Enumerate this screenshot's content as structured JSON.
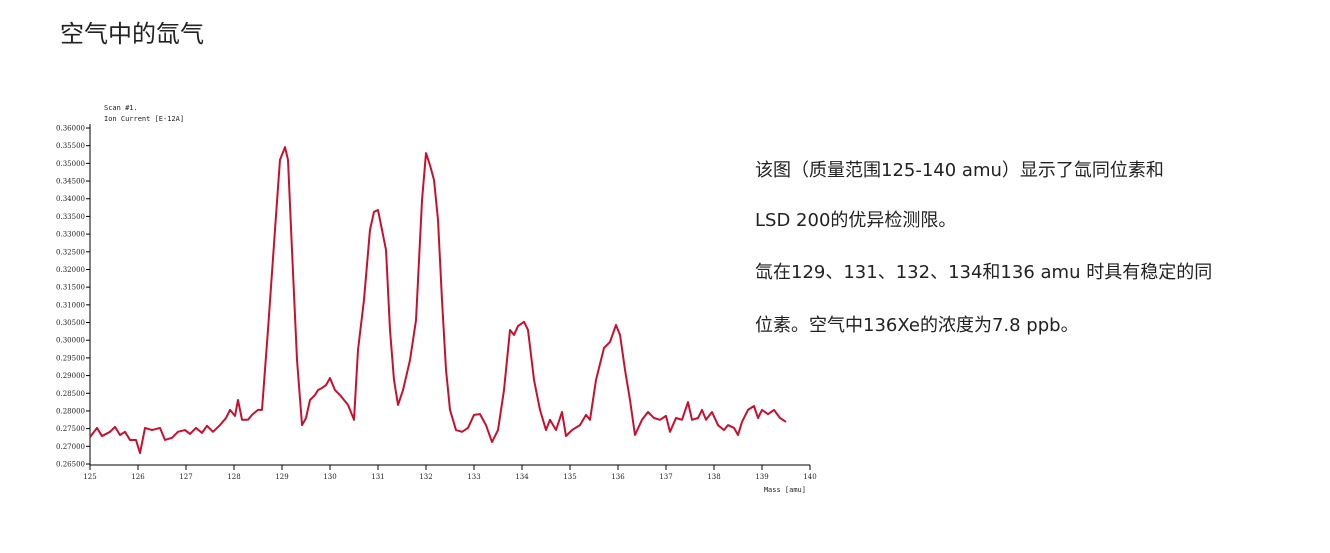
{
  "heading": "空气中的氙气",
  "description": [
    "该图（质量范围125-140 amu）显示了氙同位素和",
    "LSD 200的优异检测限。",
    "氙在129、131、132、134和136 amu 时具有稳定的同",
    "位素。空气中136Xe的浓度为7.8 ppb。"
  ],
  "chart_data": {
    "type": "line",
    "subtitle": "Scan #1.",
    "y_label": "Ion Current [E-12A]",
    "x_label": "Mass [amu]",
    "xlim": [
      125,
      140
    ],
    "xticks": [
      125,
      126,
      127,
      128,
      129,
      130,
      131,
      132,
      133,
      134,
      135,
      136,
      137,
      138,
      139,
      140
    ],
    "ylim": [
      0.265,
      0.36
    ],
    "yticks": [
      {
        "value": 0.265,
        "label": "0.26500"
      },
      {
        "value": 0.27,
        "label": "0.27000"
      },
      {
        "value": 0.275,
        "label": "0.27500"
      },
      {
        "value": 0.28,
        "label": "0.28000"
      },
      {
        "value": 0.285,
        "label": "0.28500"
      },
      {
        "value": 0.29,
        "label": "0.29000"
      },
      {
        "value": 0.295,
        "label": "0.29500"
      },
      {
        "value": 0.3,
        "label": "0.30000"
      },
      {
        "value": 0.305,
        "label": "0.30500"
      },
      {
        "value": 0.31,
        "label": "0.31000"
      },
      {
        "value": 0.315,
        "label": "0.31500"
      },
      {
        "value": 0.32,
        "label": "0.32000"
      },
      {
        "value": 0.325,
        "label": "0.32500"
      },
      {
        "value": 0.33,
        "label": "0.33000"
      },
      {
        "value": 0.335,
        "label": "0.33500"
      },
      {
        "value": 0.34,
        "label": "0.34000"
      },
      {
        "value": 0.345,
        "label": "0.34500"
      },
      {
        "value": 0.35,
        "label": "0.35000"
      },
      {
        "value": 0.355,
        "label": "0.35500"
      },
      {
        "value": 0.36,
        "label": "0.36000"
      }
    ],
    "grid": false,
    "series": [
      {
        "color": "#c8102e",
        "x": [
          125,
          125.146,
          125.25,
          125.417,
          125.521,
          125.625,
          125.729,
          125.833,
          125.958,
          126.042,
          126.146,
          126.292,
          126.458,
          126.563,
          126.708,
          126.833,
          126.979,
          127.083,
          127.208,
          127.333,
          127.438,
          127.563,
          127.708,
          127.833,
          127.917,
          128.021,
          128.083,
          128.167,
          128.292,
          128.375,
          128.5,
          128.583,
          128.708,
          128.854,
          128.958,
          129.063,
          129.125,
          129.208,
          129.313,
          129.417,
          129.5,
          129.583,
          129.688,
          129.75,
          129.833,
          129.917,
          130,
          130.104,
          130.208,
          130.375,
          130.5,
          130.583,
          130.708,
          130.833,
          130.917,
          131,
          131.083,
          131.167,
          131.25,
          131.333,
          131.417,
          131.521,
          131.667,
          131.792,
          131.917,
          132,
          132.083,
          132.167,
          132.25,
          132.333,
          132.417,
          132.5,
          132.625,
          132.75,
          132.875,
          133,
          133.125,
          133.25,
          133.375,
          133.5,
          133.625,
          133.75,
          133.833,
          133.917,
          134.042,
          134.125,
          134.25,
          134.375,
          134.5,
          134.583,
          134.708,
          134.833,
          134.917,
          135.042,
          135.208,
          135.333,
          135.417,
          135.542,
          135.708,
          135.833,
          135.958,
          136.042,
          136.146,
          136.25,
          136.354,
          136.5,
          136.625,
          136.75,
          136.875,
          137,
          137.083,
          137.208,
          137.333,
          137.458,
          137.542,
          137.667,
          137.75,
          137.833,
          137.958,
          138.083,
          138.208,
          138.292,
          138.417,
          138.5,
          138.583,
          138.708,
          138.833,
          138.917,
          139,
          139.125,
          139.25,
          139.375,
          139.5
        ],
        "values": [
          0.2726,
          0.2752,
          0.2729,
          0.2741,
          0.2755,
          0.2732,
          0.2741,
          0.2718,
          0.2718,
          0.2681,
          0.2752,
          0.2746,
          0.2752,
          0.2718,
          0.2724,
          0.2741,
          0.2746,
          0.2735,
          0.2752,
          0.2738,
          0.2758,
          0.2741,
          0.276,
          0.278,
          0.2803,
          0.2786,
          0.2831,
          0.2775,
          0.2775,
          0.2789,
          0.2803,
          0.2803,
          0.3029,
          0.3312,
          0.351,
          0.3546,
          0.351,
          0.3255,
          0.2944,
          0.276,
          0.278,
          0.2831,
          0.2845,
          0.2859,
          0.2865,
          0.2873,
          0.2893,
          0.2859,
          0.2845,
          0.2817,
          0.2775,
          0.2972,
          0.3114,
          0.3312,
          0.3363,
          0.3368,
          0.3312,
          0.3255,
          0.3029,
          0.2888,
          0.2817,
          0.2859,
          0.2944,
          0.3057,
          0.3396,
          0.3529,
          0.3495,
          0.3453,
          0.334,
          0.3114,
          0.2916,
          0.2803,
          0.2746,
          0.2741,
          0.2752,
          0.2789,
          0.2791,
          0.276,
          0.2712,
          0.2746,
          0.2859,
          0.3029,
          0.3015,
          0.304,
          0.3052,
          0.3029,
          0.2888,
          0.2803,
          0.2746,
          0.2775,
          0.2746,
          0.2797,
          0.2729,
          0.2746,
          0.276,
          0.2789,
          0.2775,
          0.2888,
          0.2978,
          0.2995,
          0.3043,
          0.3015,
          0.2916,
          0.2831,
          0.2732,
          0.2775,
          0.2797,
          0.278,
          0.2775,
          0.2786,
          0.2741,
          0.278,
          0.2775,
          0.2825,
          0.2775,
          0.278,
          0.2803,
          0.2775,
          0.2797,
          0.276,
          0.2746,
          0.276,
          0.2752,
          0.2732,
          0.2769,
          0.2803,
          0.2814,
          0.278,
          0.2803,
          0.2791,
          0.2803,
          0.278,
          0.2769
        ]
      }
    ]
  }
}
